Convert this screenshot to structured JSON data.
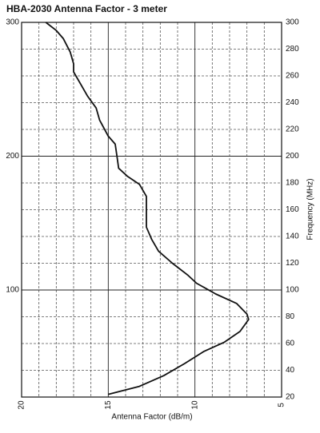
{
  "chart_data": {
    "type": "line",
    "title": "HBA-2030 Antenna Factor  - 3 meter",
    "xlabel": "Antenna Factor (dB/m)",
    "y2label": "Frequency (MHz)",
    "xlim": [
      20,
      5
    ],
    "xticks": [
      20,
      15,
      10,
      5
    ],
    "xminorticks": [
      19,
      18,
      17,
      16,
      14,
      13,
      12,
      11,
      9,
      8,
      7,
      6
    ],
    "ylim": [
      20,
      300
    ],
    "yticks": [
      100,
      200,
      300
    ],
    "y2lim": [
      20,
      300
    ],
    "y2ticks": [
      20,
      40,
      60,
      80,
      100,
      120,
      140,
      160,
      180,
      200,
      220,
      240,
      260,
      280,
      300
    ],
    "grid": true,
    "color": "#111111",
    "x": [
      22,
      28,
      36,
      45,
      54,
      61,
      69,
      78,
      82,
      90,
      97,
      105,
      111,
      120,
      129,
      138,
      147,
      156,
      164,
      170,
      179,
      185,
      191,
      200,
      209,
      215,
      227,
      236,
      245,
      254,
      263,
      269,
      278,
      288,
      294,
      300
    ],
    "values": [
      15.0,
      13.2,
      11.8,
      10.6,
      9.5,
      8.3,
      7.4,
      6.9,
      7.0,
      7.6,
      8.8,
      9.9,
      10.4,
      11.3,
      12.1,
      12.5,
      12.8,
      12.8,
      12.8,
      12.8,
      13.2,
      13.9,
      14.4,
      14.5,
      14.6,
      15.0,
      15.5,
      15.7,
      16.2,
      16.6,
      17.0,
      17.0,
      17.2,
      17.6,
      18.0,
      18.6
    ]
  }
}
